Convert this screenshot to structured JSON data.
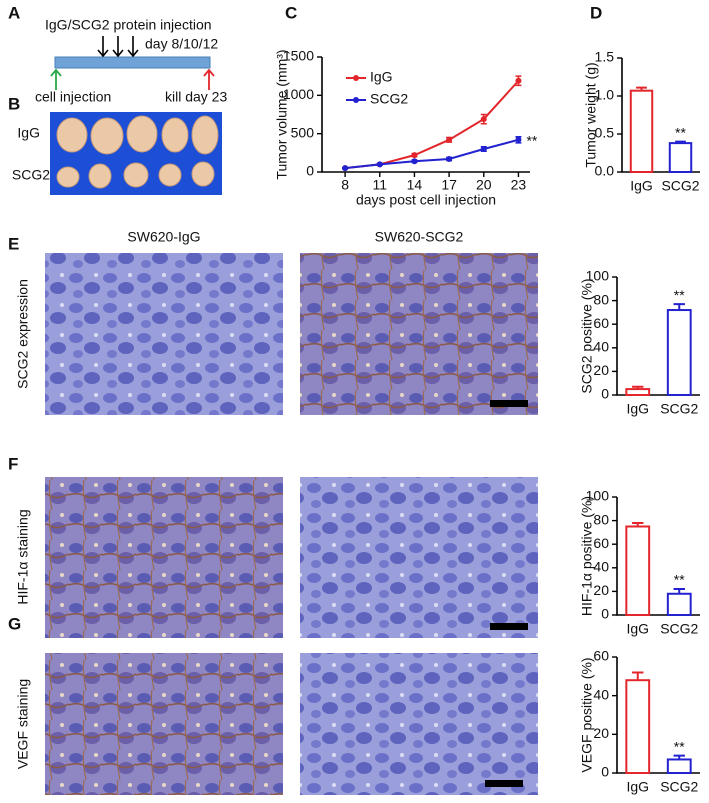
{
  "figure": {
    "A": {
      "label": "A",
      "injection": "IgG/SCG2 protein injection",
      "days": "day 8/10/12",
      "start": "cell injection",
      "end": "kill day 23"
    },
    "B": {
      "label": "B",
      "rows": [
        "IgG",
        "SCG2"
      ]
    },
    "histology": {
      "columns": [
        "SW620-IgG",
        "SW620-SCG2"
      ],
      "rows": [
        {
          "label": "E",
          "stain": "SCG2 expression"
        },
        {
          "label": "F",
          "stain": "HIF-1α staining"
        },
        {
          "label": "G",
          "stain": "VEGF staining"
        }
      ]
    }
  },
  "chart_data": [
    {
      "type": "line",
      "panel": "C",
      "y_label": "Tumor volume (mm³)",
      "x_label": "days post cell injection",
      "x": [
        8,
        11,
        14,
        17,
        20,
        23
      ],
      "series": [
        {
          "name": "IgG",
          "color": "#e3262b",
          "values": [
            50,
            100,
            220,
            420,
            690,
            1190
          ],
          "errors": [
            5,
            10,
            20,
            30,
            60,
            60
          ]
        },
        {
          "name": "SCG2",
          "color": "#2222d0",
          "values": [
            50,
            100,
            140,
            170,
            300,
            420
          ],
          "errors": [
            5,
            10,
            15,
            20,
            30,
            40
          ]
        }
      ],
      "xlim": [
        6,
        24
      ],
      "xticks": [
        8,
        11,
        14,
        17,
        20,
        23
      ],
      "ylim": [
        0,
        1500
      ],
      "yticks": [
        0,
        500,
        1000,
        1500
      ],
      "legend": "upper left",
      "annotation": "**"
    },
    {
      "type": "bar",
      "panel": "D",
      "y_label": "Tumor weight (g)",
      "categories": [
        "IgG",
        "SCG2"
      ],
      "values": [
        1.07,
        0.38
      ],
      "errors": [
        0.04,
        0.02
      ],
      "colors": [
        "#e3262b",
        "#2222d0"
      ],
      "ylim": [
        0,
        1.5
      ],
      "yticks": [
        {
          "value": 0,
          "label": "0.0"
        },
        {
          "value": 0.5,
          "label": "0.5"
        },
        {
          "value": 1,
          "label": "1.0"
        },
        {
          "value": 1.5,
          "label": "1.5"
        }
      ],
      "annotation": "**"
    },
    {
      "type": "bar",
      "y_label": "SCG2 positive (%)",
      "categories": [
        "IgG",
        "SCG2"
      ],
      "values": [
        5,
        72
      ],
      "errors": [
        2,
        5
      ],
      "colors": [
        "#e3262b",
        "#2222d0"
      ],
      "ylim": [
        0,
        100
      ],
      "yticks": [
        0,
        20,
        40,
        60,
        80,
        100
      ],
      "annotation": "**"
    },
    {
      "type": "bar",
      "y_label": "HIF-1α positive (%)",
      "categories": [
        "IgG",
        "SCG2"
      ],
      "values": [
        75,
        18
      ],
      "errors": [
        3,
        4
      ],
      "colors": [
        "#e3262b",
        "#2222d0"
      ],
      "ylim": [
        0,
        100
      ],
      "yticks": [
        0,
        20,
        40,
        60,
        80,
        100
      ],
      "annotation": "**"
    },
    {
      "type": "bar",
      "y_label": "VEGF positive (%)",
      "categories": [
        "IgG",
        "SCG2"
      ],
      "values": [
        48,
        7
      ],
      "errors": [
        4,
        2
      ],
      "colors": [
        "#e3262b",
        "#2222d0"
      ],
      "ylim": [
        0,
        60
      ],
      "yticks": [
        0,
        20,
        40,
        60
      ],
      "annotation": "**"
    }
  ]
}
